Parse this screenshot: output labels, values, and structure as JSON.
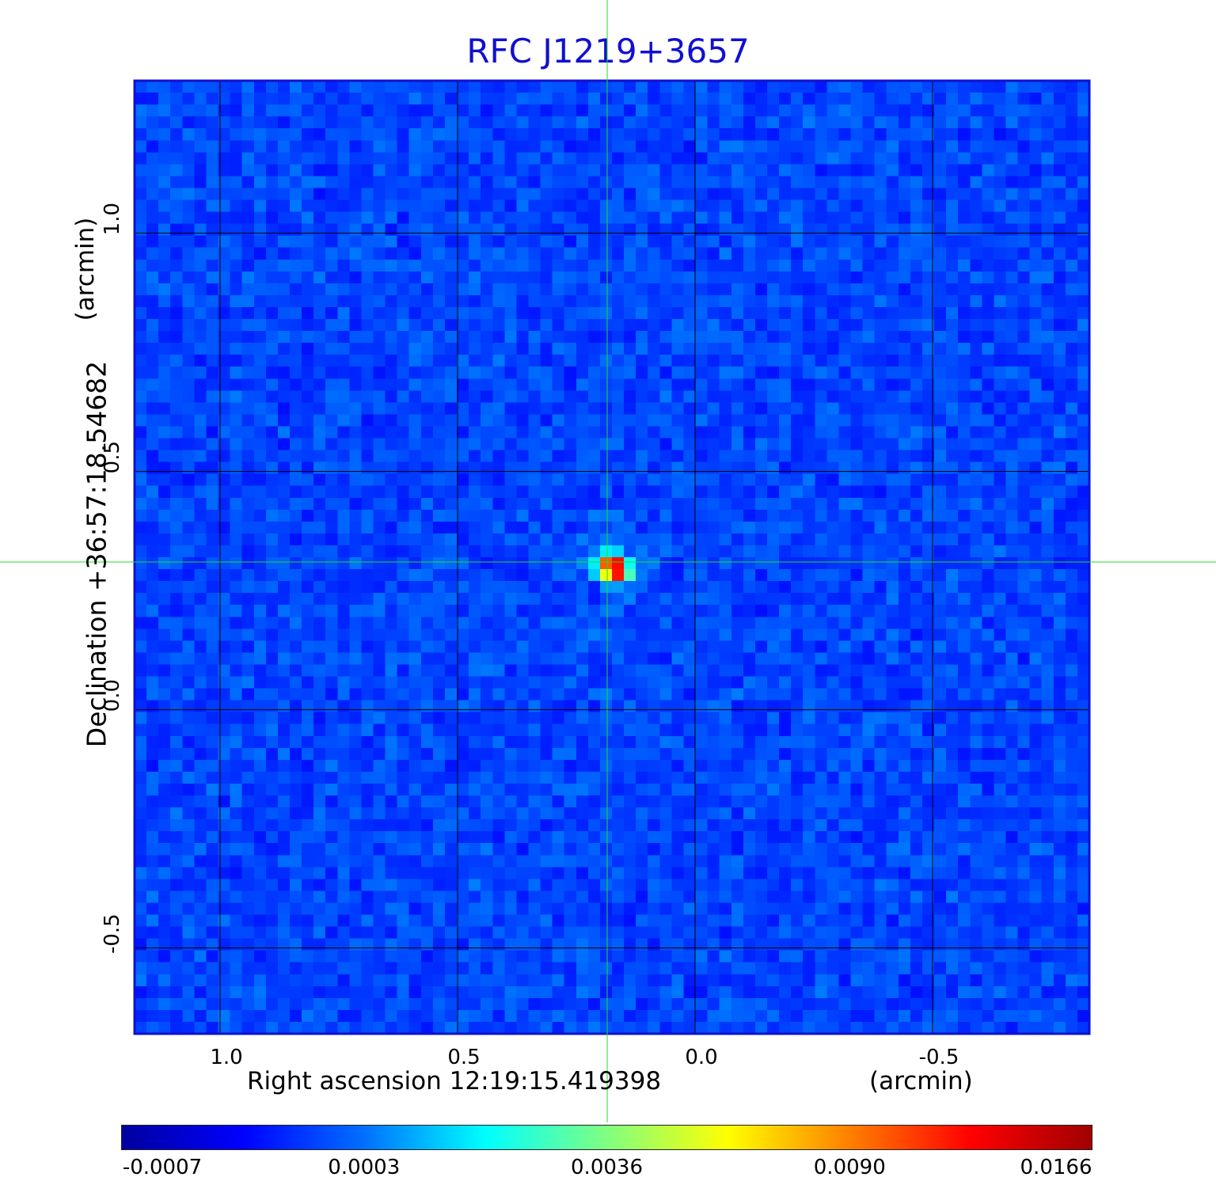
{
  "chart_data": {
    "type": "heatmap",
    "title": "RFC J1219+3657",
    "xlabel": "Right ascension  12:19:15.419398",
    "xunit": "(arcmin)",
    "ylabel": "Declination  +36:57:18.54682",
    "yunit": "(arcmin)",
    "x_ticks": [
      "1.0",
      "0.5",
      "0.0",
      "-0.5"
    ],
    "x_tick_values": [
      1.0,
      0.5,
      0.0,
      -0.5
    ],
    "y_ticks": [
      "1.0",
      "0.5",
      "0.0",
      "-0.5"
    ],
    "y_tick_values": [
      1.0,
      0.5,
      0.0,
      -0.5
    ],
    "xlim": [
      1.18,
      -0.83
    ],
    "ylim": [
      -0.68,
      1.32
    ],
    "grid": true,
    "source_position": {
      "x": 0.185,
      "y": 0.31
    },
    "peak_value": 0.0166,
    "background_level": 0.0003,
    "colorbar": {
      "ticks": [
        "-0.0007",
        "0.0003",
        "0.0036",
        "0.0090",
        "0.0166"
      ],
      "colors": [
        "#0000a0",
        "#0000ff",
        "#0070ff",
        "#00ffff",
        "#80ff80",
        "#ffff00",
        "#ff8000",
        "#ff0000",
        "#a00000"
      ]
    },
    "colors": {
      "frame": "#1010d0",
      "grid": "#000000",
      "crosshair": "#22dd22",
      "title": "#1010d0"
    }
  }
}
